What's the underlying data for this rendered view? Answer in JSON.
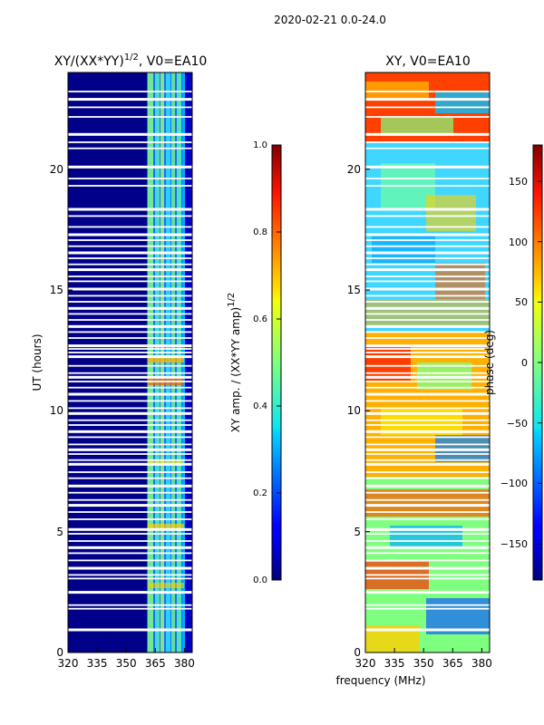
{
  "figure": {
    "suptitle": "2020-02-21 0.0-24.0",
    "shared_xlabel": "frequency (MHz)"
  },
  "chart_data": [
    {
      "type": "heatmap",
      "title": "XY/(XX*YY)^1/2, V0=EA10",
      "title_main": "XY/(XX*YY)",
      "title_exp": "1/2",
      "title_tail": ", V0=EA10",
      "xlabel": "frequency (MHz)",
      "ylabel": "UT (hours)",
      "xlim": [
        320,
        384
      ],
      "ylim": [
        0,
        24
      ],
      "xticks": [
        320,
        335,
        350,
        365,
        380
      ],
      "yticks": [
        0,
        5,
        10,
        15,
        20
      ],
      "colorbar": {
        "label": "XY amp. / (XX*YY amp)^1/2",
        "label_main": "XY amp. / (XX*YY amp)",
        "label_exp": "1/2",
        "range": [
          0.0,
          1.0
        ],
        "ticks": [
          "0.0",
          "0.2",
          "0.4",
          "0.6",
          "0.8",
          "1.0"
        ],
        "colormap": "jet"
      },
      "description": "low amplitude (~0.1) across 320-362 MHz; elevated amplitude (0.3-0.7) in 362-380 MHz band; horizontal gaps of missing data"
    },
    {
      "type": "heatmap",
      "title": "XY, V0=EA10",
      "xlabel": "frequency (MHz)",
      "ylabel": "",
      "xlim": [
        320,
        384
      ],
      "ylim": [
        0,
        24
      ],
      "xticks": [
        320,
        335,
        350,
        365,
        380
      ],
      "yticks": [
        0,
        5,
        10,
        15,
        20
      ],
      "colorbar": {
        "label": "phase (deg)",
        "range": [
          -180,
          180
        ],
        "ticks": [
          "150",
          "100",
          "50",
          "0",
          "−50",
          "−100",
          "−150"
        ],
        "tick_values": [
          150,
          100,
          50,
          0,
          -50,
          -100,
          -150
        ],
        "colormap": "jet"
      },
      "description": "phase varying from -180 to 180 deg; mostly near 0 (cyan/green) 13-21 h, noisy red/orange/blue elsewhere; horizontal gaps"
    }
  ],
  "colors": {
    "jet_low": "#00007f",
    "jet_mid": "#7fff7f",
    "jet_high": "#7f0000",
    "gap": "#ffffff"
  },
  "gap_hours": [
    0.95,
    1.8,
    1.95,
    2.5,
    3.05,
    3.2,
    3.5,
    3.8,
    4.1,
    4.35,
    4.6,
    4.9,
    5.1,
    5.5,
    5.8,
    6.1,
    6.3,
    6.6,
    6.9,
    7.2,
    7.45,
    7.8,
    7.95,
    8.2,
    8.4,
    8.6,
    8.9,
    9.15,
    9.4,
    9.6,
    9.9,
    10.1,
    10.4,
    10.7,
    10.95,
    11.2,
    11.4,
    11.55,
    11.85,
    12.25,
    12.4,
    12.55,
    12.7,
    13.0,
    13.25,
    13.5,
    13.75,
    14.0,
    14.25,
    14.5,
    14.75,
    15.05,
    15.35,
    15.55,
    15.85,
    16.05,
    16.3,
    16.55,
    16.8,
    17.05,
    17.3,
    17.6,
    18.05,
    18.35,
    19.3,
    19.6,
    20.1,
    20.85,
    21.1,
    21.45,
    22.15,
    22.55,
    22.9,
    23.2
  ]
}
